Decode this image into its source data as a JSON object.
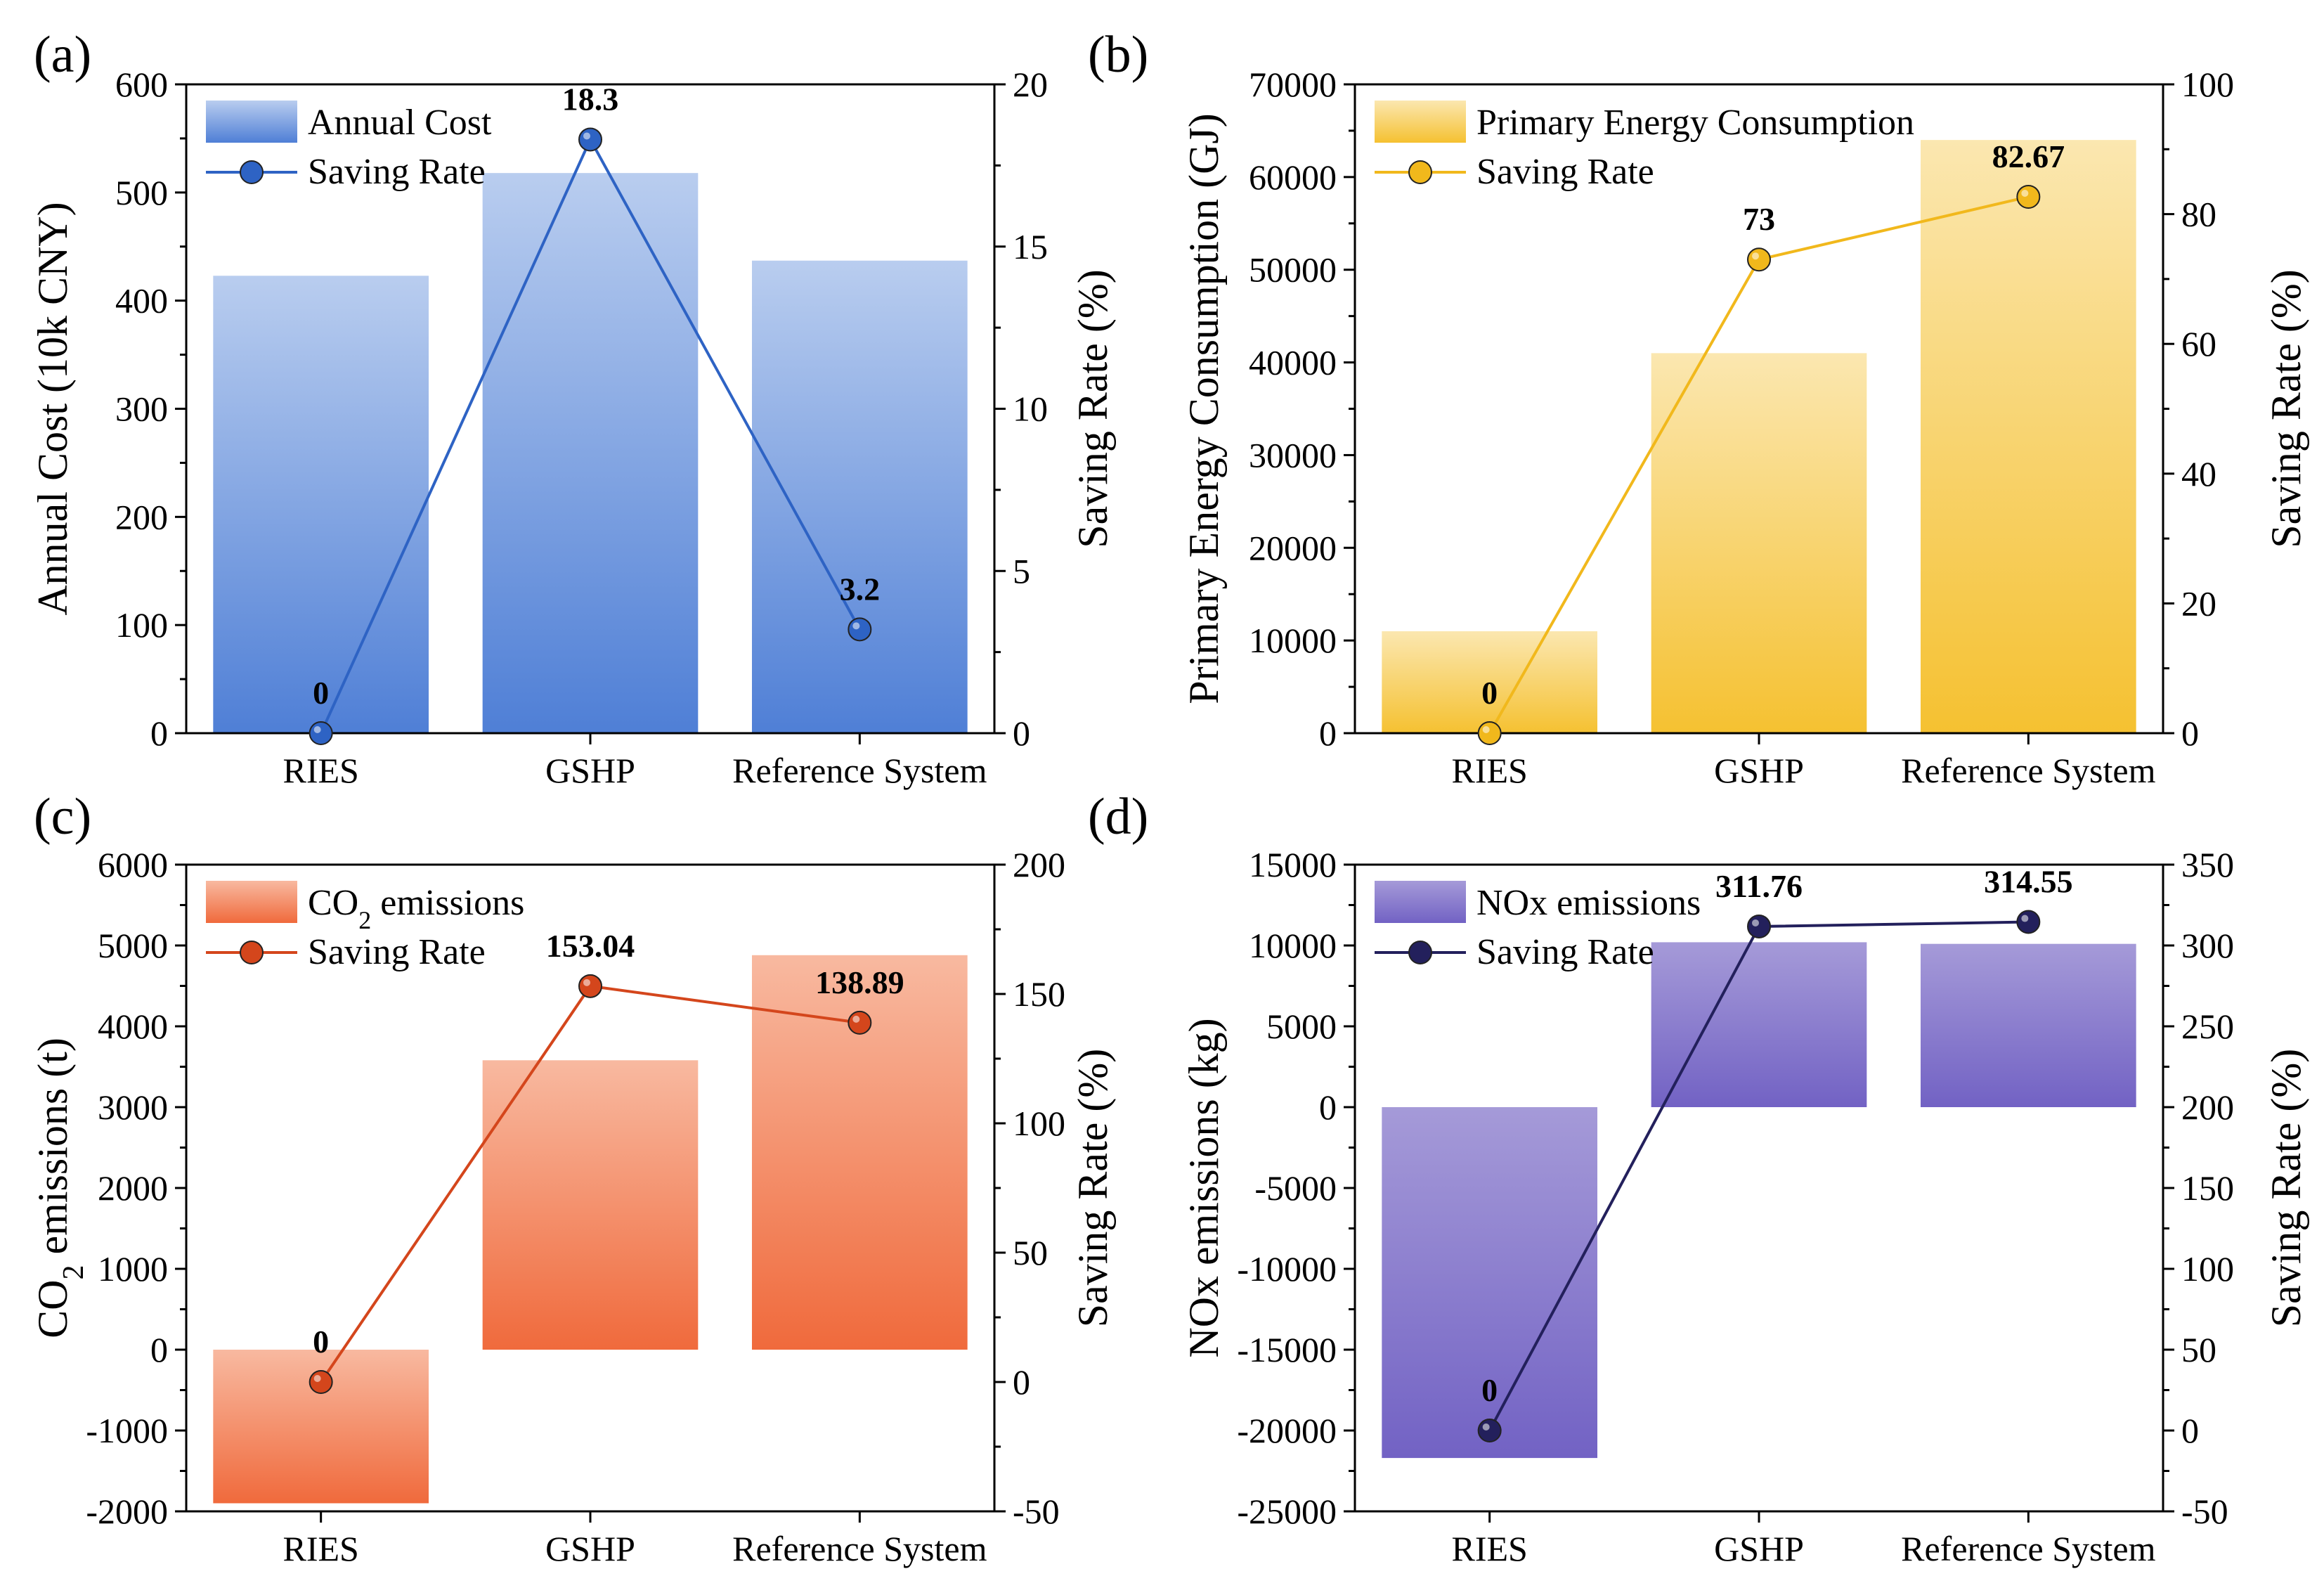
{
  "chart_data": [
    {
      "panel": "(a)",
      "type": "bar",
      "color": "#4f7fd6",
      "color_light": "#b9cdef",
      "line_color": "#2e63c4",
      "categories": [
        "RIES",
        "GSHP",
        "Reference System"
      ],
      "series": [
        {
          "name": "Annual Cost",
          "axis": "left",
          "type": "bar",
          "values": [
            423,
            518,
            437
          ]
        },
        {
          "name": "Saving Rate",
          "axis": "right",
          "type": "line",
          "values": [
            0,
            18.3,
            3.2
          ],
          "labels": [
            "0",
            "18.3",
            "3.2"
          ]
        }
      ],
      "ylabel": "Annual Cost (10k CNY)",
      "ylabel_sub": "",
      "ylabel_after": "",
      "y2label": "Saving Rate (%)",
      "ylim": [
        0,
        600
      ],
      "yticks": [
        0,
        100,
        200,
        300,
        400,
        500,
        600
      ],
      "y2lim": [
        0,
        20
      ],
      "y2ticks": [
        0,
        5,
        10,
        15,
        20
      ],
      "legend": "top-left"
    },
    {
      "panel": "(b)",
      "type": "bar",
      "color": "#f5c131",
      "color_light": "#fbe7b0",
      "line_color": "#f1b81c",
      "categories": [
        "RIES",
        "GSHP",
        "Reference System"
      ],
      "series": [
        {
          "name": "Primary Energy  Consumption",
          "axis": "left",
          "type": "bar",
          "values": [
            11000,
            41000,
            64000
          ]
        },
        {
          "name": "Saving Rate",
          "axis": "right",
          "type": "line",
          "values": [
            0,
            73,
            82.67
          ],
          "labels": [
            "0",
            "73",
            "82.67"
          ]
        }
      ],
      "ylabel": "Primary Energy  Consumption (GJ)",
      "ylabel_sub": "",
      "ylabel_after": "",
      "y2label": "Saving Rate (%)",
      "ylim": [
        0,
        70000
      ],
      "yticks": [
        0,
        10000,
        20000,
        30000,
        40000,
        50000,
        60000,
        70000
      ],
      "y2lim": [
        0,
        100
      ],
      "y2ticks": [
        0,
        20,
        40,
        60,
        80,
        100
      ],
      "legend": "top-left"
    },
    {
      "panel": "(c)",
      "type": "bar",
      "color": "#f06a3c",
      "color_light": "#f8b9a0",
      "line_color": "#d4461c",
      "categories": [
        "RIES",
        "GSHP",
        "Reference System"
      ],
      "series": [
        {
          "name": "CO2 emissions",
          "axis": "left",
          "type": "bar",
          "values": [
            -1900,
            3580,
            4880
          ]
        },
        {
          "name": "Saving Rate",
          "axis": "right",
          "type": "line",
          "values": [
            0,
            153.04,
            138.89
          ],
          "labels": [
            "0",
            "153.04",
            "138.89"
          ]
        }
      ],
      "legend_bar": {
        "before": "CO",
        "sub": "2",
        "after": " emissions"
      },
      "ylabel": "CO",
      "ylabel_sub": "2",
      "ylabel_after": " emissions (t)",
      "y2label": "Saving Rate (%)",
      "ylim": [
        -2000,
        6000
      ],
      "yticks": [
        -2000,
        -1000,
        0,
        1000,
        2000,
        3000,
        4000,
        5000,
        6000
      ],
      "y2lim": [
        -50,
        200
      ],
      "y2ticks": [
        -50,
        0,
        50,
        100,
        150,
        200
      ],
      "legend": "top-left"
    },
    {
      "panel": "(d)",
      "type": "bar",
      "color": "#7262c4",
      "color_light": "#a59ad8",
      "line_color": "#23205c",
      "categories": [
        "RIES",
        "GSHP",
        "Reference System"
      ],
      "series": [
        {
          "name": "NOx emissions",
          "axis": "left",
          "type": "bar",
          "values": [
            -21700,
            10200,
            10100
          ]
        },
        {
          "name": "Saving Rate",
          "axis": "right",
          "type": "line",
          "values": [
            0,
            311.76,
            314.55
          ],
          "labels": [
            "0",
            "311.76",
            "314.55"
          ]
        }
      ],
      "ylabel": "NOx emissions (kg)",
      "ylabel_sub": "",
      "ylabel_after": "",
      "y2label": "Saving Rate (%)",
      "ylim": [
        -25000,
        15000
      ],
      "yticks": [
        -25000,
        -20000,
        -15000,
        -10000,
        -5000,
        0,
        5000,
        10000,
        15000
      ],
      "y2lim": [
        -50,
        350
      ],
      "y2ticks": [
        -50,
        0,
        50,
        100,
        150,
        200,
        250,
        300,
        350
      ],
      "legend": "top-left"
    }
  ]
}
